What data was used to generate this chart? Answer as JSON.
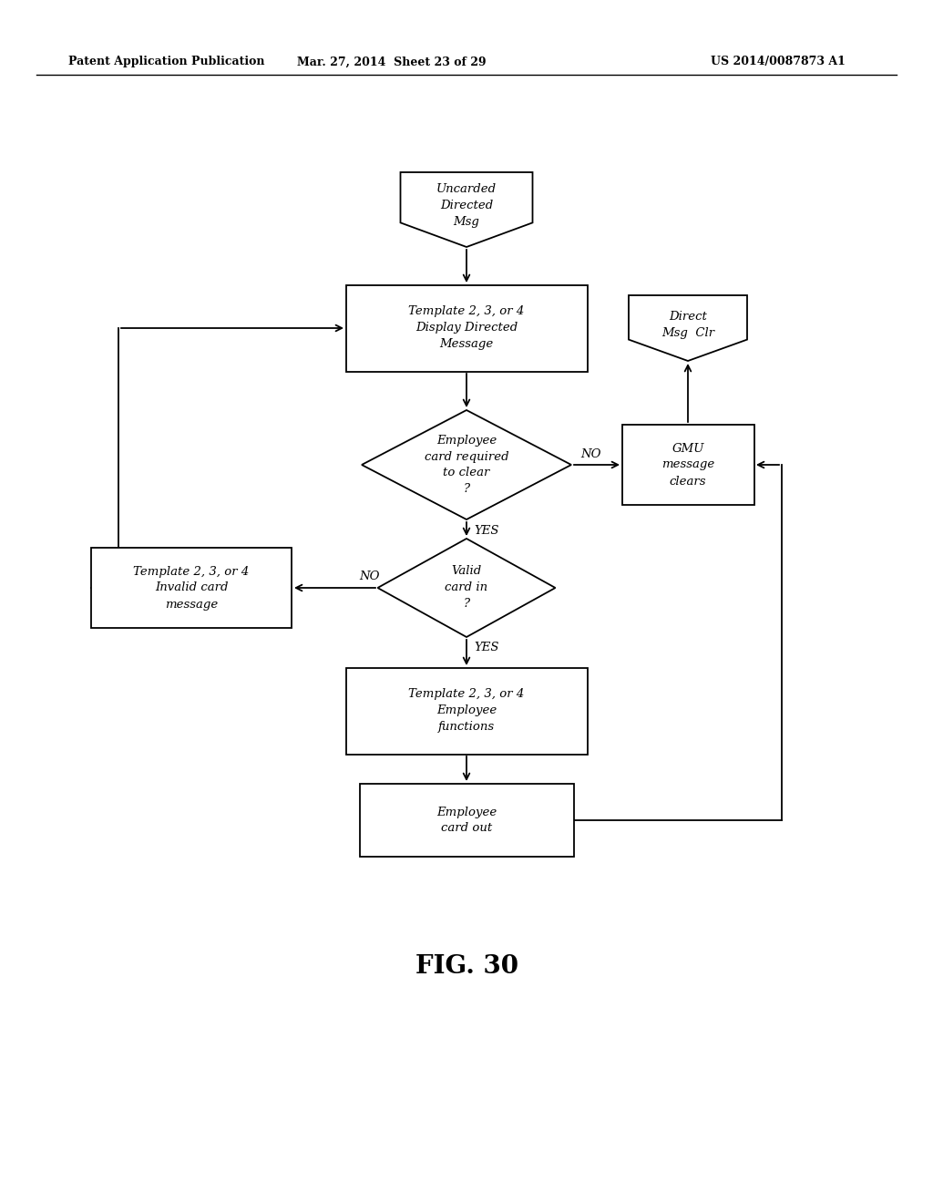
{
  "bg_color": "#ffffff",
  "header_left": "Patent Application Publication",
  "header_mid": "Mar. 27, 2014  Sheet 23 of 29",
  "header_right": "US 2014/0087873 A1",
  "fig_label": "FIG. 30",
  "line_color": "#000000",
  "text_color": "#000000",
  "font_size": 9.5
}
